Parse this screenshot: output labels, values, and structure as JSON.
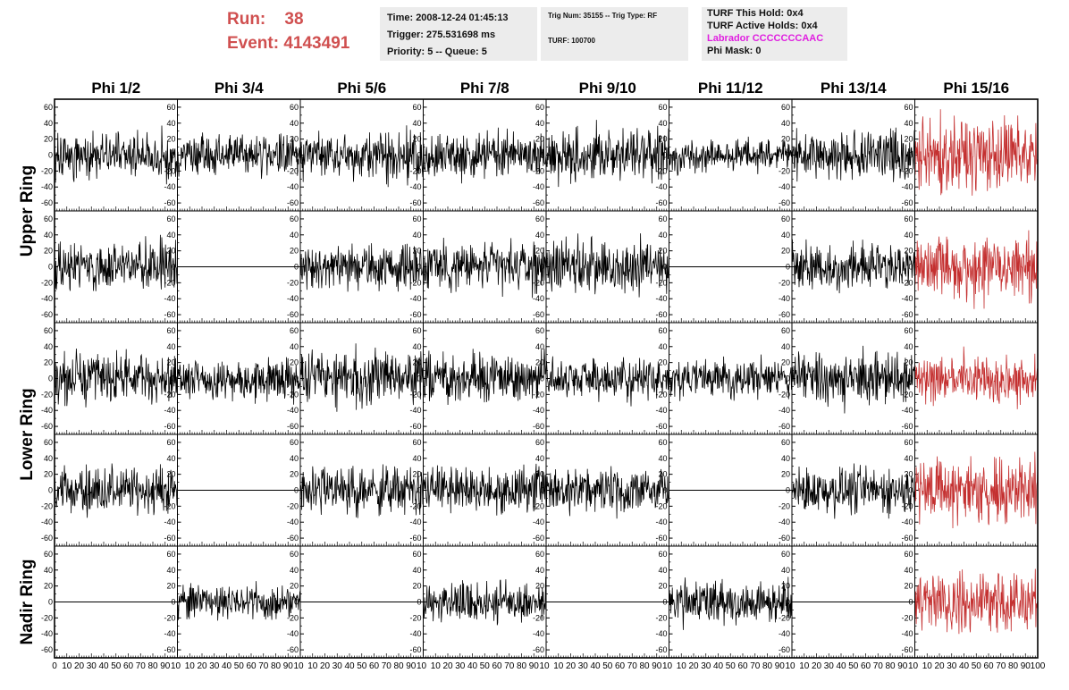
{
  "header": {
    "run_label": "Run:",
    "run_value": "38",
    "event_label": "Event:",
    "event_value": "4143491",
    "time": "Time: 2008-12-24 01:45:13",
    "trigger": "Trigger: 275.531698 ms",
    "priority": "Priority: 5 -- Queue: 5",
    "trig_num": "Trig Num: 35155 -- Trig Type: RF",
    "turf": "TURF: 100700",
    "turf_this_hold": "TURF This Hold: 0x4",
    "turf_active_holds": "TURF Active Holds: 0x4",
    "labrador": "Labrador CCCCCCCAAC",
    "phi_mask": "Phi Mask: 0"
  },
  "colors": {
    "header_red": "#d05050",
    "trace_black": "#000000",
    "trace_red": "#c43030",
    "labrador_magenta": "#e020e0",
    "info_bg": "#ececec"
  },
  "chart_data": {
    "type": "line",
    "columns": [
      "Phi 1/2",
      "Phi 3/4",
      "Phi 5/6",
      "Phi 7/8",
      "Phi 9/10",
      "Phi 11/12",
      "Phi 13/14",
      "Phi 15/16"
    ],
    "row_groups": [
      {
        "label": "Upper Ring",
        "rows": [
          0,
          1
        ]
      },
      {
        "label": "Lower Ring",
        "rows": [
          2,
          3
        ]
      },
      {
        "label": "Nadir Ring",
        "rows": [
          4
        ]
      }
    ],
    "ylim": [
      -70,
      70
    ],
    "yticks": [
      -60,
      -40,
      -20,
      0,
      20,
      40,
      60
    ],
    "xlim": [
      0,
      100
    ],
    "xticks": [
      0,
      10,
      20,
      30,
      40,
      50,
      60,
      70,
      80,
      90,
      100
    ],
    "xtick_label_top_tail": "10",
    "xtick_label_last": "100",
    "panels": [
      [
        {
          "amp": 14,
          "flat": false,
          "seed": 11,
          "red": false
        },
        {
          "amp": 12,
          "flat": false,
          "seed": 12,
          "red": false
        },
        {
          "amp": 15,
          "flat": false,
          "seed": 13,
          "red": false
        },
        {
          "amp": 14,
          "flat": false,
          "seed": 14,
          "red": false
        },
        {
          "amp": 16,
          "flat": false,
          "seed": 15,
          "red": false
        },
        {
          "amp": 10,
          "flat": false,
          "seed": 16,
          "red": false
        },
        {
          "amp": 15,
          "flat": false,
          "seed": 17,
          "red": false
        },
        {
          "amp": 22,
          "flat": false,
          "seed": 18,
          "red": true
        }
      ],
      [
        {
          "amp": 15,
          "flat": false,
          "seed": 21,
          "red": false
        },
        {
          "amp": 0,
          "flat": true,
          "seed": 22,
          "red": false
        },
        {
          "amp": 14,
          "flat": false,
          "seed": 23,
          "red": false
        },
        {
          "amp": 15,
          "flat": false,
          "seed": 24,
          "red": false
        },
        {
          "amp": 16,
          "flat": false,
          "seed": 25,
          "red": false
        },
        {
          "amp": 0,
          "flat": true,
          "seed": 26,
          "red": false
        },
        {
          "amp": 14,
          "flat": false,
          "seed": 27,
          "red": false
        },
        {
          "amp": 20,
          "flat": false,
          "seed": 28,
          "red": true
        }
      ],
      [
        {
          "amp": 15,
          "flat": false,
          "seed": 31,
          "red": false
        },
        {
          "amp": 12,
          "flat": false,
          "seed": 32,
          "red": false
        },
        {
          "amp": 16,
          "flat": false,
          "seed": 33,
          "red": false
        },
        {
          "amp": 14,
          "flat": false,
          "seed": 34,
          "red": false
        },
        {
          "amp": 12,
          "flat": false,
          "seed": 35,
          "red": false
        },
        {
          "amp": 11,
          "flat": false,
          "seed": 36,
          "red": false
        },
        {
          "amp": 16,
          "flat": false,
          "seed": 37,
          "red": false
        },
        {
          "amp": 14,
          "flat": false,
          "seed": 38,
          "red": true
        }
      ],
      [
        {
          "amp": 14,
          "flat": false,
          "seed": 41,
          "red": false
        },
        {
          "amp": 0,
          "flat": true,
          "seed": 42,
          "red": false
        },
        {
          "amp": 15,
          "flat": false,
          "seed": 43,
          "red": false
        },
        {
          "amp": 14,
          "flat": false,
          "seed": 44,
          "red": false
        },
        {
          "amp": 13,
          "flat": false,
          "seed": 45,
          "red": false
        },
        {
          "amp": 0,
          "flat": true,
          "seed": 46,
          "red": false
        },
        {
          "amp": 14,
          "flat": false,
          "seed": 47,
          "red": false
        },
        {
          "amp": 20,
          "flat": false,
          "seed": 48,
          "red": true
        }
      ],
      [
        {
          "amp": 0,
          "flat": true,
          "seed": 51,
          "red": false
        },
        {
          "amp": 11,
          "flat": false,
          "seed": 52,
          "red": false
        },
        {
          "amp": 0,
          "flat": true,
          "seed": 53,
          "red": false
        },
        {
          "amp": 13,
          "flat": false,
          "seed": 54,
          "red": false
        },
        {
          "amp": 0,
          "flat": true,
          "seed": 55,
          "red": false
        },
        {
          "amp": 13,
          "flat": false,
          "seed": 56,
          "red": false
        },
        {
          "amp": 0,
          "flat": true,
          "seed": 57,
          "red": false
        },
        {
          "amp": 18,
          "flat": false,
          "seed": 58,
          "red": true
        }
      ]
    ]
  }
}
